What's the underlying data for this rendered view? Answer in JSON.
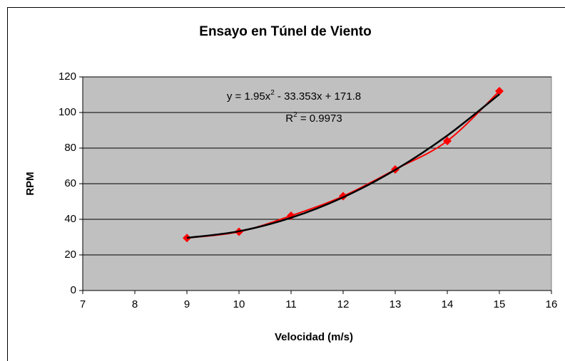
{
  "chart_data": {
    "type": "scatter",
    "title": "Ensayo en Túnel de Viento",
    "x_label": "Velocidad (m/s)",
    "y_label": "RPM",
    "xlim": [
      7,
      16
    ],
    "xticks": [
      7,
      8,
      9,
      10,
      11,
      12,
      13,
      14,
      15,
      16
    ],
    "ylim": [
      0,
      120
    ],
    "yticks": [
      0,
      20,
      40,
      60,
      80,
      100,
      120
    ],
    "grid": true,
    "x": [
      9,
      10,
      11,
      12,
      13,
      14,
      15
    ],
    "series": [
      {
        "color": "#ff0000",
        "marker": "diamond",
        "values": [
          29.5,
          33,
          42,
          53,
          68,
          84,
          112
        ]
      },
      {
        "color": "#000000",
        "marker": "none",
        "values": [
          29.57,
          33.27,
          40.87,
          52.36,
          67.76,
          87.06,
          110.26
        ]
      }
    ],
    "annotations": [
      [
        "y = 1.95x",
        "2",
        " - 33.353x + 171.8"
      ],
      [
        "R",
        "2",
        " = 0.9973"
      ]
    ]
  }
}
